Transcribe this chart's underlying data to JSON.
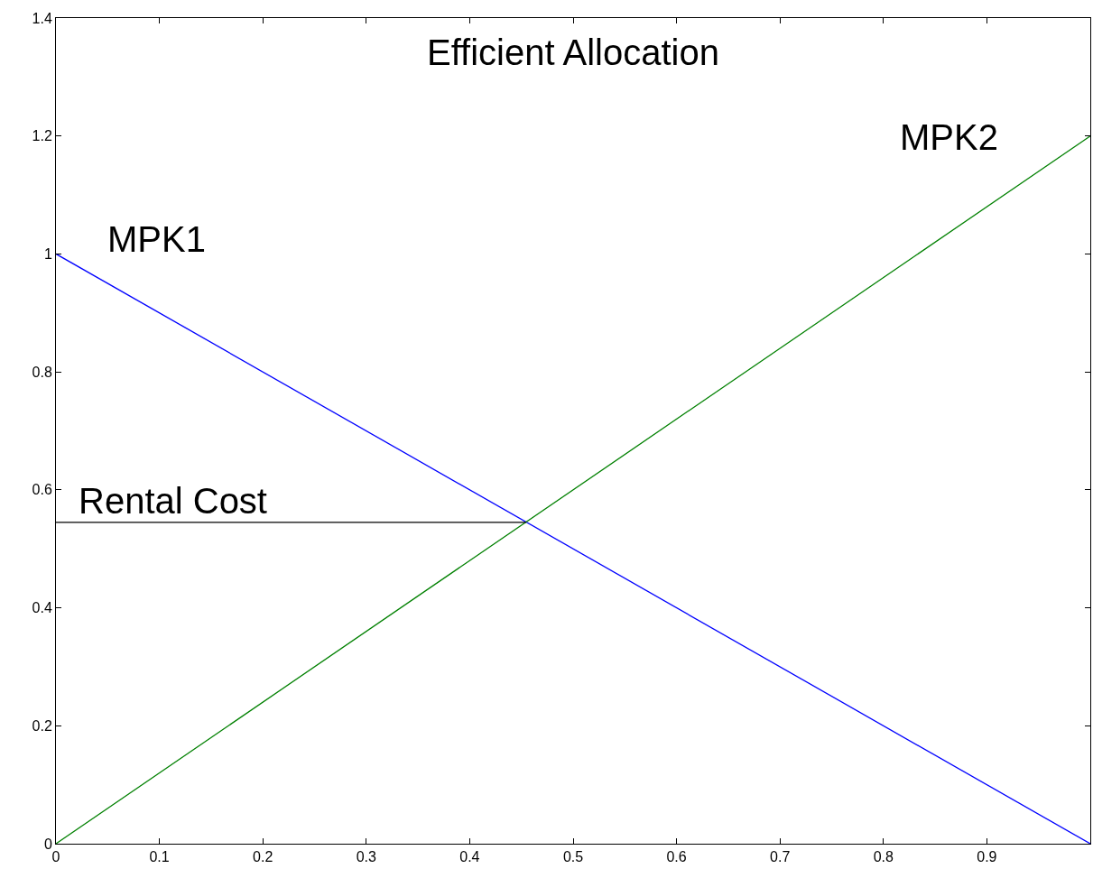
{
  "chart_data": {
    "type": "line",
    "title": "Efficient Allocation",
    "xlim": [
      0,
      1
    ],
    "xticks": [
      0,
      0.1,
      0.2,
      0.3,
      0.4,
      0.5,
      0.6,
      0.7,
      0.8,
      0.9
    ],
    "ylim": [
      0,
      1.4
    ],
    "yticks": [
      0,
      0.2,
      0.4,
      0.6,
      0.8,
      1,
      1.2,
      1.4
    ],
    "legend": false,
    "marker": "none",
    "line_style": "solid",
    "series": [
      {
        "name": "MPK1",
        "color": "#0000ff",
        "x": [
          0,
          1
        ],
        "values": [
          1,
          0
        ]
      },
      {
        "name": "MPK2",
        "color": "#008000",
        "x": [
          0,
          1
        ],
        "values": [
          0,
          1.2
        ]
      },
      {
        "color": "#000000",
        "x": [
          0,
          0.4545
        ],
        "values": [
          0.545,
          0.545
        ]
      }
    ],
    "annotations": [
      {
        "text": "Rental Cost",
        "x": 0.02,
        "y": 0.545
      }
    ]
  }
}
